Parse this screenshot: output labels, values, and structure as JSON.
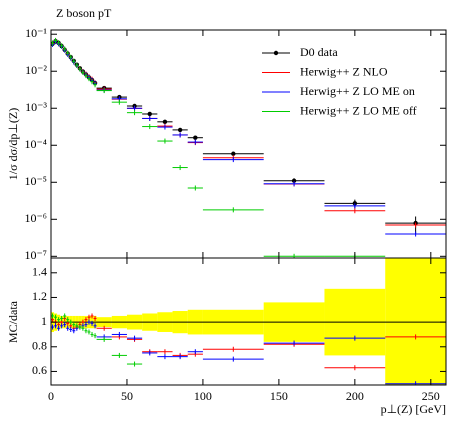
{
  "chart_data": [
    {
      "type": "histogram",
      "title": "Z boson pT",
      "ylabel": "1/σ dσ/dp⊥(Z)",
      "log_y": true,
      "bins": [
        0,
        2,
        4,
        6,
        8,
        10,
        12,
        14,
        16,
        18,
        20,
        22,
        24,
        26,
        28,
        30,
        40,
        50,
        60,
        70,
        80,
        90,
        100,
        140,
        180,
        220,
        260
      ],
      "xlim": [
        0,
        260
      ],
      "xticks": [
        0,
        50,
        100,
        150,
        200,
        250
      ],
      "ylim": [
        9e-08,
        0.13
      ],
      "yticks": [
        {
          "value": 1e-07,
          "label": "10⁻⁷"
        },
        {
          "value": 1e-06,
          "label": "10⁻⁶"
        },
        {
          "value": 1e-05,
          "label": "10⁻⁵"
        },
        {
          "value": 0.0001,
          "label": "10⁻⁴"
        },
        {
          "value": 0.001,
          "label": "10⁻³"
        },
        {
          "value": 0.01,
          "label": "10⁻²"
        },
        {
          "value": 0.1,
          "label": "10⁻¹"
        }
      ],
      "legend": "upper right",
      "series": [
        {
          "name": "D0 data",
          "color": "#000000",
          "style": "points",
          "values": [
            0.055,
            0.065,
            0.058,
            0.048,
            0.038,
            0.03,
            0.024,
            0.019,
            0.015,
            0.012,
            0.0098,
            0.0082,
            0.0068,
            0.0058,
            0.0048,
            0.0035,
            0.002,
            0.00115,
            0.0007,
            0.00043,
            0.00026,
            0.00016,
            5.9e-05,
            1.1e-05,
            2.7e-06,
            7.9e-07
          ],
          "errors": [
            0.003,
            0.003,
            0.003,
            0.002,
            0.002,
            0.0015,
            0.0012,
            0.001,
            0.0008,
            0.0006,
            0.0005,
            0.0004,
            0.0003,
            0.0003,
            0.0002,
            0.00014,
            0.0001,
            7e-05,
            5e-05,
            3.5e-05,
            2.3e-05,
            1.6e-05,
            6e-06,
            1.8e-06,
            7e-07,
            4e-07
          ]
        },
        {
          "name": "Herwig++ Z NLO",
          "color": "#ff0000",
          "style": "steps",
          "values": [
            0.056,
            0.065,
            0.057,
            0.048,
            0.039,
            0.03,
            0.023,
            0.018,
            0.0144,
            0.0118,
            0.0098,
            0.0084,
            0.0071,
            0.0061,
            0.0049,
            0.0033,
            0.00176,
            0.00099,
            0.00053,
            0.00033,
            0.00019,
            0.000118,
            4.6e-05,
            9e-06,
            1.7e-06,
            7e-07
          ]
        },
        {
          "name": "Herwig++ Z LO ME on",
          "color": "#0000ff",
          "style": "steps",
          "values": [
            0.053,
            0.063,
            0.055,
            0.047,
            0.037,
            0.0285,
            0.0226,
            0.0177,
            0.0143,
            0.0115,
            0.0095,
            0.008,
            0.0068,
            0.0057,
            0.0047,
            0.0031,
            0.0018,
            0.001,
            0.00053,
            0.00031,
            0.00019,
            0.000122,
            4.1e-05,
            9.1e-06,
            2.3e-06,
            4e-07
          ]
        },
        {
          "name": "Herwig++ Z LO ME off",
          "color": "#00cc00",
          "style": "steps",
          "values": [
            0.058,
            0.068,
            0.059,
            0.049,
            0.04,
            0.031,
            0.024,
            0.0186,
            0.0146,
            0.0115,
            0.0093,
            0.0076,
            0.0063,
            0.0052,
            0.0043,
            0.003,
            0.00146,
            0.00076,
            0.00032,
            0.00013,
            2.5e-05,
            7e-06,
            1.8e-06,
            1e-07,
            1e-07,
            null
          ]
        }
      ]
    },
    {
      "type": "histogram",
      "ylabel": "MC/data",
      "xlabel": "p⊥(Z) [GeV]",
      "bins": [
        0,
        2,
        4,
        6,
        8,
        10,
        12,
        14,
        16,
        18,
        20,
        22,
        24,
        26,
        28,
        30,
        40,
        50,
        60,
        70,
        80,
        90,
        100,
        140,
        180,
        220,
        260
      ],
      "xlim": [
        0,
        260
      ],
      "xticks": [
        0,
        50,
        100,
        150,
        200,
        250
      ],
      "ylim": [
        0.49,
        1.52
      ],
      "yticks": [
        0.6,
        0.8,
        1,
        1.2,
        1.4
      ],
      "reference": 1,
      "band": {
        "color": "#ffff00",
        "values": [
          0.08,
          0.07,
          0.06,
          0.05,
          0.05,
          0.05,
          0.05,
          0.05,
          0.05,
          0.05,
          0.05,
          0.05,
          0.05,
          0.05,
          0.05,
          0.04,
          0.05,
          0.06,
          0.07,
          0.08,
          0.09,
          0.1,
          0.1,
          0.16,
          0.27,
          0.6
        ]
      },
      "series": [
        {
          "color": "#ff0000",
          "values": [
            1.02,
            1.0,
            0.98,
            1.0,
            1.03,
            0.99,
            0.97,
            0.95,
            0.96,
            0.98,
            1.0,
            1.02,
            1.04,
            1.05,
            1.03,
            0.95,
            0.88,
            0.86,
            0.76,
            0.76,
            0.73,
            0.74,
            0.78,
            0.82,
            0.63,
            0.88
          ]
        },
        {
          "color": "#0000ff",
          "values": [
            0.96,
            0.97,
            0.95,
            0.97,
            0.98,
            0.95,
            0.94,
            0.93,
            0.95,
            0.96,
            0.97,
            0.98,
            1.0,
            0.99,
            0.97,
            0.88,
            0.9,
            0.87,
            0.75,
            0.72,
            0.72,
            0.76,
            0.7,
            0.83,
            0.87,
            0.5
          ]
        },
        {
          "color": "#00cc00",
          "values": [
            1.05,
            1.04,
            1.02,
            1.03,
            1.05,
            1.02,
            1.0,
            0.98,
            0.97,
            0.96,
            0.95,
            0.93,
            0.92,
            0.9,
            0.89,
            0.86,
            0.73,
            0.66,
            null,
            null,
            null,
            null,
            null,
            null,
            null,
            null
          ]
        }
      ]
    }
  ]
}
